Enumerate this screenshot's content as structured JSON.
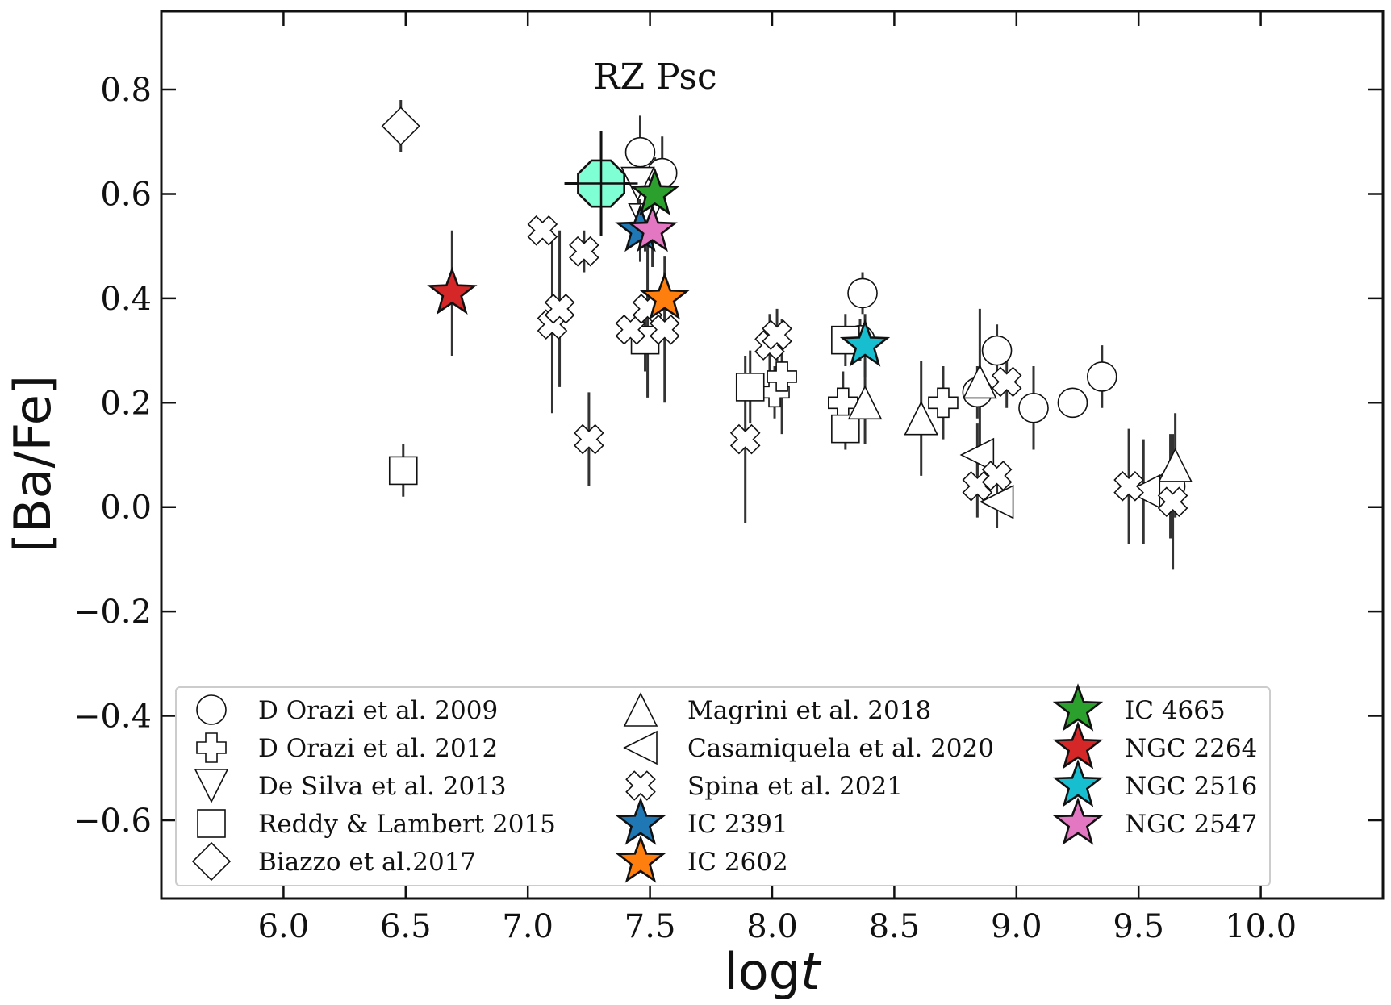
{
  "chart_data": {
    "type": "scatter",
    "title": "",
    "annotation": "RZ Psc",
    "xlabel_main": "log",
    "xlabel_italic": "t",
    "ylabel": "[Ba/Fe]",
    "xlim": [
      5.5,
      10.5
    ],
    "ylim": [
      -0.75,
      0.95
    ],
    "x_ticks": [
      6.0,
      6.5,
      7.0,
      7.5,
      8.0,
      8.5,
      9.0,
      9.5,
      10.0
    ],
    "x_tick_labels": [
      "6.0",
      "6.5",
      "7.0",
      "7.5",
      "8.0",
      "8.5",
      "9.0",
      "9.5",
      "10.0"
    ],
    "y_ticks": [
      -0.6,
      -0.4,
      -0.2,
      0.0,
      0.2,
      0.4,
      0.6,
      0.8
    ],
    "y_tick_labels": [
      "−0.6",
      "−0.4",
      "−0.2",
      "0.0",
      "0.2",
      "0.4",
      "0.6",
      "0.8"
    ],
    "grid": false,
    "legend_position": "lower-left",
    "rz_psc": {
      "x": 7.3,
      "y": 0.62,
      "xerr": 0.15,
      "yerr": 0.1,
      "color": "#7fffd4"
    },
    "series": [
      {
        "name": "D Orazi et al. 2009",
        "marker": "circle",
        "color": "#ffffff",
        "points": [
          {
            "x": 7.46,
            "y": 0.68,
            "err": 0.07
          },
          {
            "x": 7.55,
            "y": 0.64,
            "err": 0.07
          },
          {
            "x": 8.37,
            "y": 0.41,
            "err": 0.04
          },
          {
            "x": 8.36,
            "y": 0.32,
            "err": 0.04
          },
          {
            "x": 8.84,
            "y": 0.22,
            "err": 0.05
          },
          {
            "x": 8.92,
            "y": 0.3,
            "err": 0.05
          },
          {
            "x": 9.07,
            "y": 0.19,
            "err": 0.08
          },
          {
            "x": 9.23,
            "y": 0.2,
            "err": 0.0
          },
          {
            "x": 9.35,
            "y": 0.25,
            "err": 0.06
          },
          {
            "x": 9.63,
            "y": 0.04,
            "err": 0.1
          }
        ]
      },
      {
        "name": "D Orazi et al. 2012",
        "marker": "plus",
        "color": "#ffffff",
        "points": [
          {
            "x": 8.01,
            "y": 0.22,
            "err": 0.05
          },
          {
            "x": 8.04,
            "y": 0.25,
            "err": 0.11
          },
          {
            "x": 8.29,
            "y": 0.2,
            "err": 0.06
          },
          {
            "x": 8.7,
            "y": 0.2,
            "err": 0.07
          }
        ]
      },
      {
        "name": "De Silva et al. 2013",
        "marker": "triangle-down",
        "color": "#ffffff",
        "points": [
          {
            "x": 7.45,
            "y": 0.62,
            "err": 0.06
          },
          {
            "x": 7.48,
            "y": 0.55,
            "err": 0.06
          }
        ]
      },
      {
        "name": "Reddy & Lambert 2015",
        "marker": "square",
        "color": "#ffffff",
        "points": [
          {
            "x": 6.49,
            "y": 0.07,
            "err": 0.05
          },
          {
            "x": 7.48,
            "y": 0.32,
            "err": 0.06
          },
          {
            "x": 7.91,
            "y": 0.23,
            "err": 0.07
          },
          {
            "x": 8.3,
            "y": 0.15,
            "err": 0.04
          },
          {
            "x": 8.3,
            "y": 0.32,
            "err": 0.05
          }
        ]
      },
      {
        "name": "Biazzo et al.2017",
        "marker": "diamond",
        "color": "#ffffff",
        "points": [
          {
            "x": 6.48,
            "y": 0.73,
            "err": 0.05
          }
        ]
      },
      {
        "name": "Magrini et al. 2018",
        "marker": "triangle-up",
        "color": "#ffffff",
        "points": [
          {
            "x": 8.38,
            "y": 0.2,
            "err": 0.08
          },
          {
            "x": 8.61,
            "y": 0.17,
            "err": 0.11
          },
          {
            "x": 8.85,
            "y": 0.24,
            "err": 0.14
          },
          {
            "x": 9.65,
            "y": 0.08,
            "err": 0.1
          }
        ]
      },
      {
        "name": "Casamiquela et al. 2020",
        "marker": "triangle-left",
        "color": "#ffffff",
        "points": [
          {
            "x": 8.84,
            "y": 0.1,
            "err": 0.06
          },
          {
            "x": 8.92,
            "y": 0.01,
            "err": 0.05
          },
          {
            "x": 9.52,
            "y": 0.03,
            "err": 0.1
          }
        ]
      },
      {
        "name": "Spina et al. 2021",
        "marker": "x",
        "color": "#ffffff",
        "points": [
          {
            "x": 7.06,
            "y": 0.53,
            "err": 0.0
          },
          {
            "x": 7.1,
            "y": 0.35,
            "err": 0.17
          },
          {
            "x": 7.13,
            "y": 0.38,
            "err": 0.15
          },
          {
            "x": 7.23,
            "y": 0.49,
            "err": 0.04
          },
          {
            "x": 7.25,
            "y": 0.13,
            "err": 0.09
          },
          {
            "x": 7.42,
            "y": 0.34,
            "err": 0.0
          },
          {
            "x": 7.49,
            "y": 0.38,
            "err": 0.17
          },
          {
            "x": 7.56,
            "y": 0.34,
            "err": 0.14
          },
          {
            "x": 7.89,
            "y": 0.13,
            "err": 0.16
          },
          {
            "x": 7.99,
            "y": 0.31,
            "err": 0.06
          },
          {
            "x": 8.02,
            "y": 0.33,
            "err": 0.05
          },
          {
            "x": 8.84,
            "y": 0.04,
            "err": 0.06
          },
          {
            "x": 8.92,
            "y": 0.06,
            "err": 0.0
          },
          {
            "x": 8.96,
            "y": 0.24,
            "err": 0.05
          },
          {
            "x": 9.46,
            "y": 0.04,
            "err": 0.11
          },
          {
            "x": 9.64,
            "y": 0.01,
            "err": 0.13
          }
        ]
      },
      {
        "name": "IC 2391",
        "marker": "star",
        "color": "#1f77b4",
        "points": [
          {
            "x": 7.46,
            "y": 0.53,
            "err": 0.06
          }
        ]
      },
      {
        "name": "IC 2602",
        "marker": "star",
        "color": "#ff7f0e",
        "points": [
          {
            "x": 7.56,
            "y": 0.4,
            "err": 0.05
          }
        ]
      },
      {
        "name": "IC 4665",
        "marker": "star",
        "color": "#2ca02c",
        "points": [
          {
            "x": 7.52,
            "y": 0.6,
            "err": 0.07
          }
        ]
      },
      {
        "name": "NGC 2264",
        "marker": "star",
        "color": "#d62728",
        "points": [
          {
            "x": 6.69,
            "y": 0.41,
            "err": 0.12
          }
        ]
      },
      {
        "name": "NGC 2516",
        "marker": "star",
        "color": "#17becf",
        "points": [
          {
            "x": 8.38,
            "y": 0.31,
            "err": 0.06
          }
        ]
      },
      {
        "name": "NGC 2547",
        "marker": "star",
        "color": "#e377c2",
        "points": [
          {
            "x": 7.51,
            "y": 0.53,
            "err": 0.07
          }
        ]
      }
    ]
  }
}
